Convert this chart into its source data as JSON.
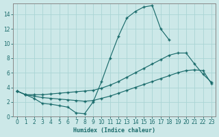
{
  "xlabel": "Humidex (Indice chaleur)",
  "background_color": "#cce8e8",
  "grid_color": "#aad4d4",
  "line_color": "#1a6b6b",
  "xlim": [
    -0.5,
    23.5
  ],
  "ylim": [
    0,
    15.5
  ],
  "xticks": [
    0,
    1,
    2,
    3,
    4,
    5,
    6,
    7,
    8,
    9,
    10,
    11,
    12,
    13,
    14,
    15,
    16,
    17,
    18,
    19,
    20,
    21,
    22,
    23
  ],
  "yticks": [
    0,
    2,
    4,
    6,
    8,
    10,
    12,
    14
  ],
  "line1_x": [
    0,
    1,
    2,
    3,
    4,
    5,
    6,
    7,
    8,
    9,
    10,
    11,
    12,
    13,
    14,
    15,
    16,
    17,
    18,
    19,
    20,
    21
  ],
  "line1_y": [
    3.5,
    3.0,
    2.5,
    1.8,
    1.7,
    1.5,
    1.3,
    0.5,
    0.4,
    2.0,
    4.8,
    8.0,
    11.0,
    13.5,
    14.4,
    15.0,
    15.2,
    12.0,
    10.5,
    null,
    null,
    null
  ],
  "line2_x": [
    0,
    1,
    2,
    3,
    4,
    5,
    6,
    7,
    8,
    9,
    10,
    11,
    12,
    13,
    14,
    15,
    16,
    17,
    18,
    19,
    20,
    21,
    22,
    23
  ],
  "line2_y": [
    3.5,
    3.0,
    3.0,
    3.0,
    3.1,
    3.2,
    3.3,
    3.4,
    3.5,
    3.6,
    3.9,
    4.3,
    4.8,
    5.4,
    6.0,
    6.6,
    7.2,
    7.8,
    8.4,
    8.7,
    8.7,
    7.2,
    5.8,
    4.7
  ],
  "line3_x": [
    0,
    1,
    2,
    3,
    4,
    5,
    6,
    7,
    8,
    9,
    10,
    11,
    12,
    13,
    14,
    15,
    16,
    17,
    18,
    19,
    20,
    21,
    22,
    23
  ],
  "line3_y": [
    3.5,
    3.0,
    2.8,
    2.6,
    2.5,
    2.4,
    2.3,
    2.2,
    2.1,
    2.2,
    2.5,
    2.8,
    3.2,
    3.6,
    4.0,
    4.4,
    4.8,
    5.2,
    5.6,
    6.0,
    6.3,
    6.4,
    6.3,
    4.5
  ]
}
